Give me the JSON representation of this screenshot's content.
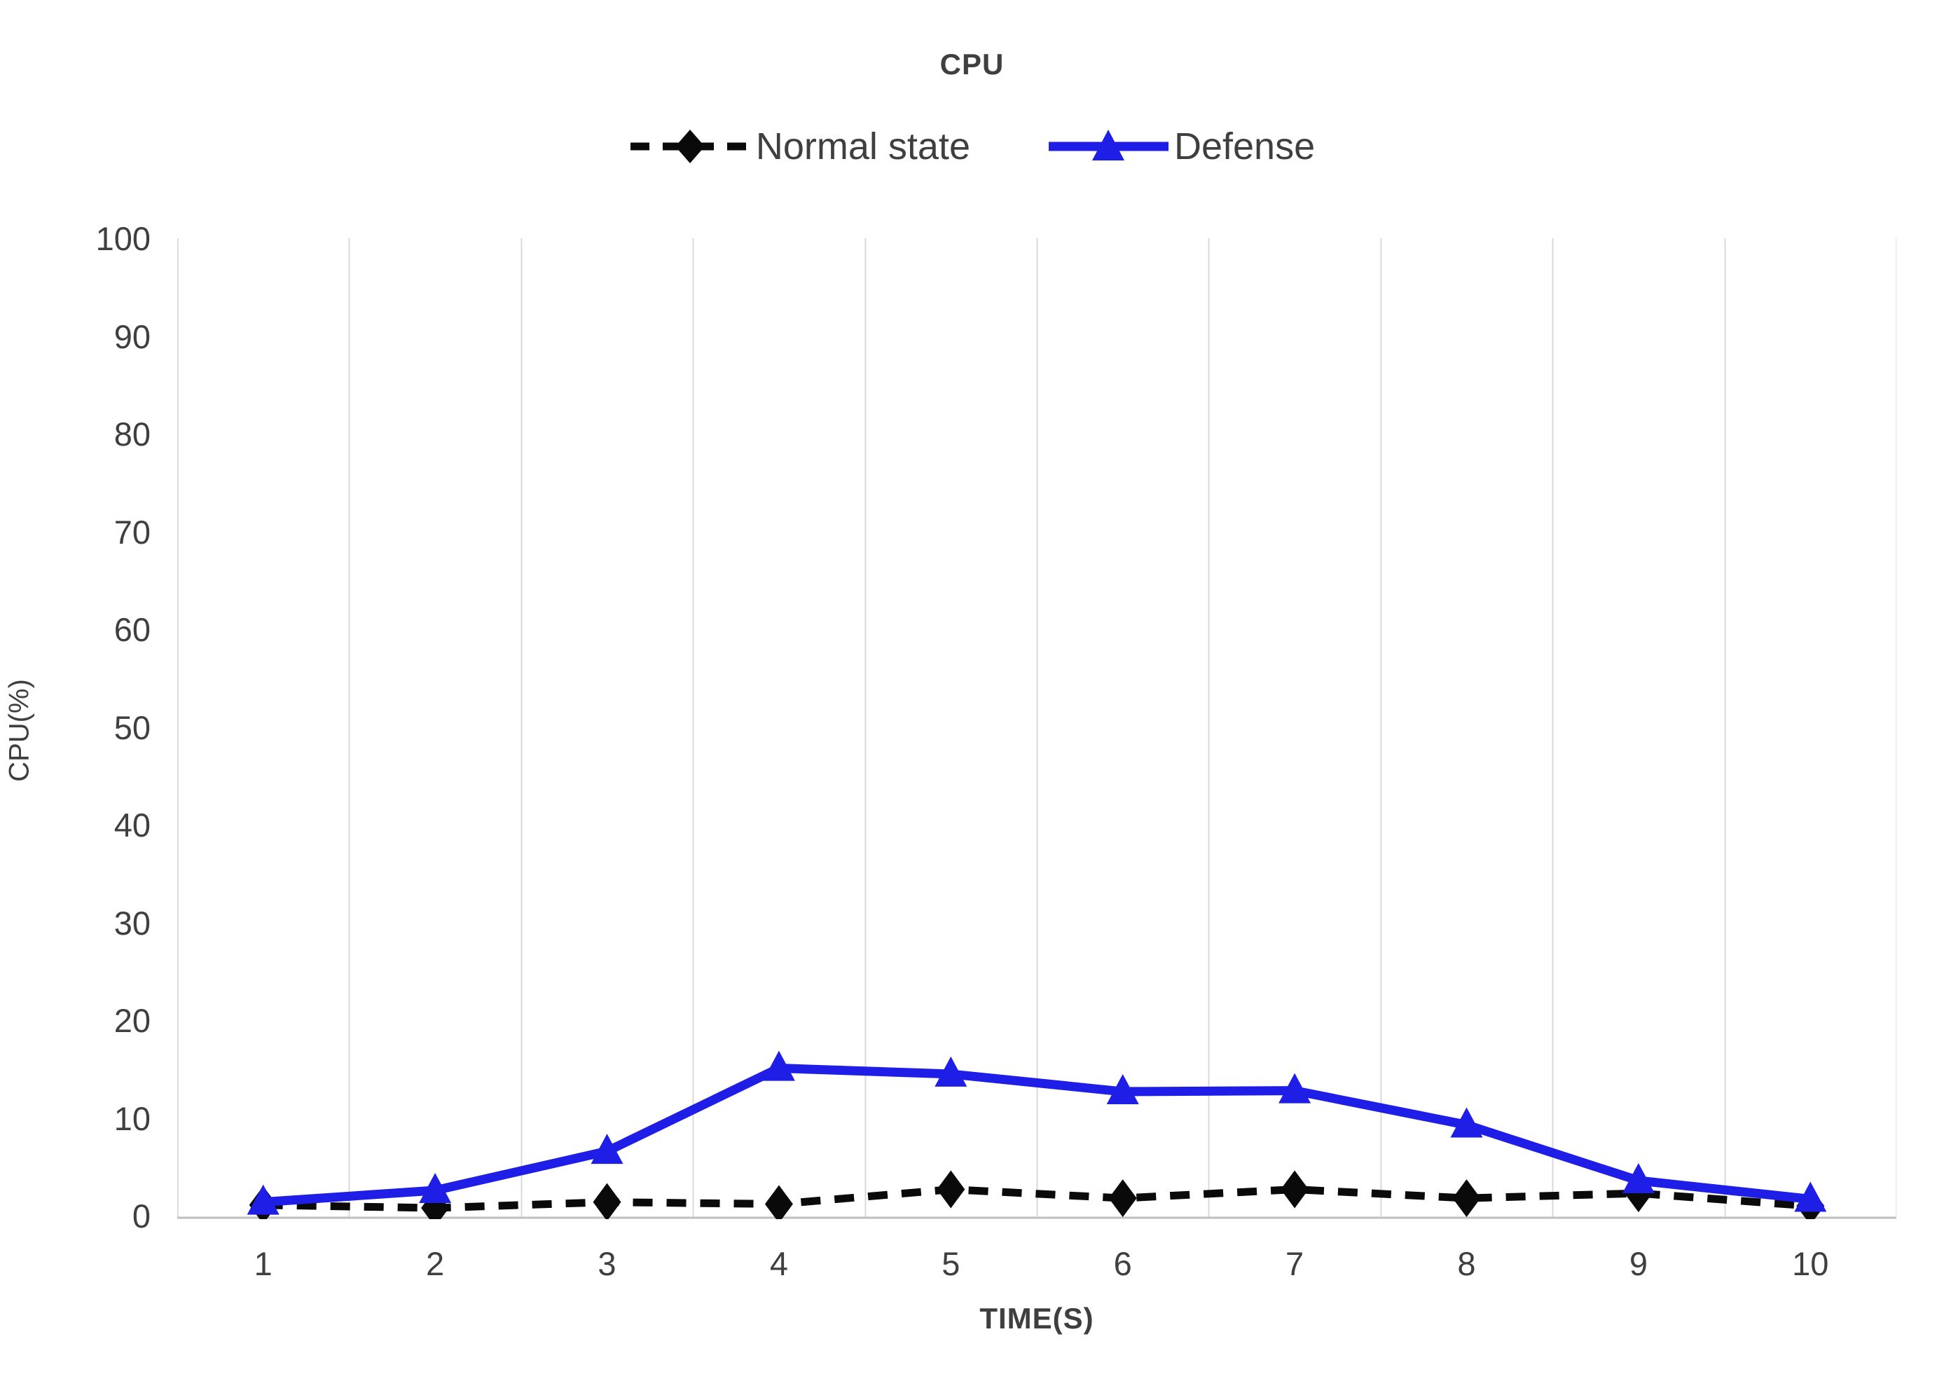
{
  "page": {
    "title": "CPU"
  },
  "legend": {
    "items": [
      {
        "label": "Normal state",
        "color": "#0a0a0a",
        "marker": "diamond",
        "line": "dashed"
      },
      {
        "label": "Defense",
        "color": "#1e1ee6",
        "marker": "triangle",
        "line": "solid"
      }
    ]
  },
  "axes": {
    "y_title": "CPU(%)",
    "x_title": "TIME(S)",
    "y_ticks": [
      100,
      90,
      80,
      70,
      60,
      50,
      40,
      30,
      20,
      10,
      0
    ],
    "x_ticks": [
      "1",
      "2",
      "3",
      "4",
      "5",
      "6",
      "7",
      "8",
      "9",
      "10"
    ]
  },
  "chart_data": {
    "type": "line",
    "title": "CPU",
    "xlabel": "TIME(S)",
    "ylabel": "CPU(%)",
    "categories": [
      1,
      2,
      3,
      4,
      5,
      6,
      7,
      8,
      9,
      10
    ],
    "series": [
      {
        "name": "Normal state",
        "values": [
          1.3,
          1.0,
          1.6,
          1.4,
          2.9,
          2.0,
          2.9,
          2.0,
          2.5,
          1.2
        ],
        "color": "#0a0a0a",
        "line_style": "dashed",
        "marker": "diamond"
      },
      {
        "name": "Defense",
        "values": [
          1.6,
          2.8,
          6.8,
          15.3,
          14.7,
          12.9,
          13.0,
          9.5,
          3.8,
          1.9
        ],
        "color": "#1e1ee6",
        "line_style": "solid",
        "marker": "triangle"
      }
    ],
    "ylim": [
      0,
      100
    ],
    "grid": "vertical-only",
    "gridline_color": "#d9d9d9",
    "axis_line_color": "#bfbfbf",
    "legend_position": "top"
  }
}
